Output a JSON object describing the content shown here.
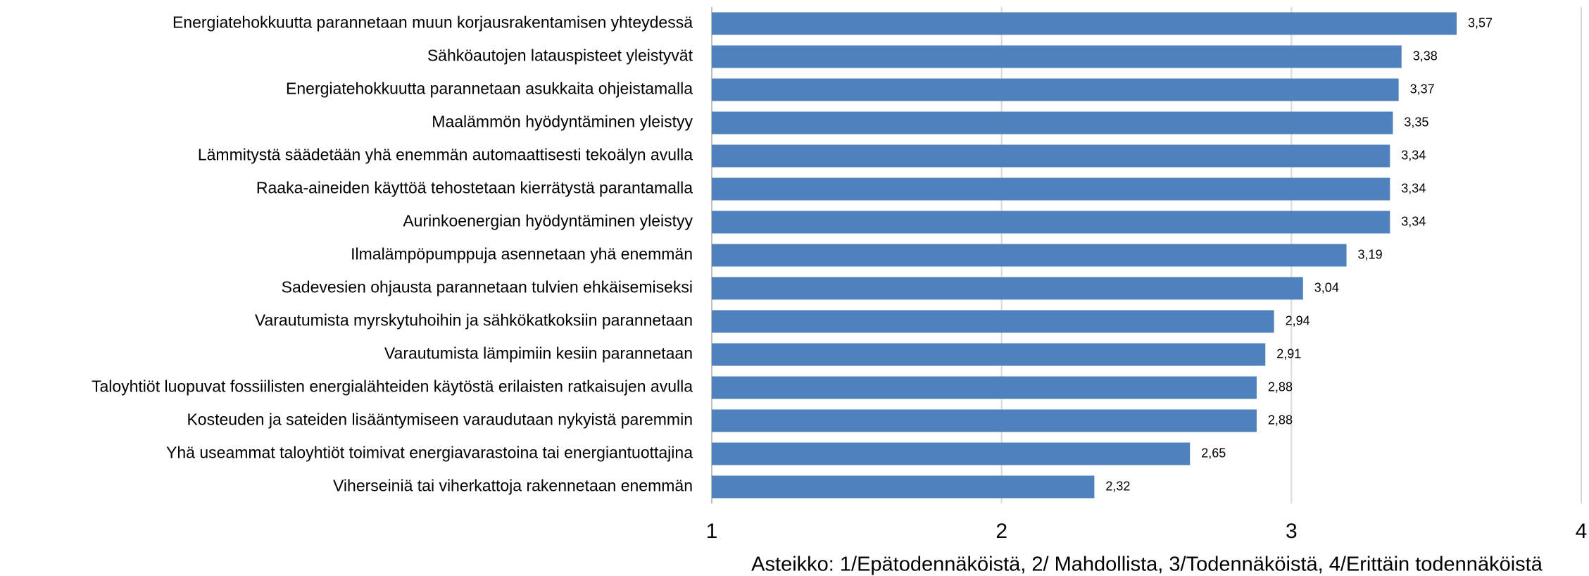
{
  "chart_data": {
    "type": "barh",
    "categories": [
      "Energiatehokkuutta parannetaan muun korjausrakentamisen yhteydessä",
      "Sähköautojen latauspisteet yleistyvät",
      "Energiatehokkuutta parannetaan asukkaita ohjeistamalla",
      "Maalämmön hyödyntäminen yleistyy",
      "Lämmitystä säädetään yhä enemmän automaattisesti tekoälyn avulla",
      "Raaka-aineiden käyttöä tehostetaan kierrätystä parantamalla",
      "Aurinkoenergian hyödyntäminen yleistyy",
      "Ilmalämpöpumppuja asennetaan yhä enemmän",
      "Sadevesien ohjausta parannetaan tulvien ehkäisemiseksi",
      "Varautumista myrskytuhoihin ja sähkökatkoksiin parannetaan",
      "Varautumista lämpimiin kesiin parannetaan",
      "Taloyhtiöt luopuvat fossiilisten energialähteiden käytöstä erilaisten ratkaisujen avulla",
      "Kosteuden ja sateiden lisääntymiseen varaudutaan nykyistä paremmin",
      "Yhä useammat taloyhtiöt toimivat energiavarastoina tai energiantuottajina",
      "Viherseiniä tai viherkattoja rakennetaan enemmän"
    ],
    "values": [
      3.57,
      3.38,
      3.37,
      3.35,
      3.34,
      3.34,
      3.34,
      3.19,
      3.04,
      2.94,
      2.91,
      2.88,
      2.88,
      2.65,
      2.32
    ],
    "value_labels": [
      "3,57",
      "3,38",
      "3,37",
      "3,35",
      "3,34",
      "3,34",
      "3,34",
      "3,19",
      "3,04",
      "2,94",
      "2,91",
      "2,88",
      "2,88",
      "2,65",
      "2,32"
    ],
    "color": "#4f81bd",
    "xlim": [
      1,
      4
    ],
    "xticks": [
      1,
      2,
      3,
      4
    ],
    "grid": true,
    "xlabel": "Asteikko: 1/Epätodennäköistä, 2/ Mahdollista, 3/Todennäköistä, 4/Erittäin todennäköistä"
  }
}
